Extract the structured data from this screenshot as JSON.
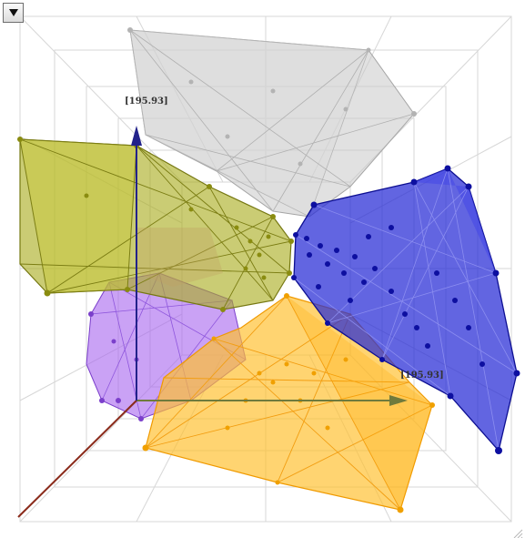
{
  "window": {
    "menu_button_icon": "chevron-down-icon",
    "resize_grip_icon": "resize-grip-icon"
  },
  "axes": {
    "y_label": "[195.93]",
    "x_label": "[195.93]",
    "colors": {
      "x": "#6f7a3c",
      "y": "#22228a",
      "z": "#8a2a1a"
    }
  },
  "clusters": [
    {
      "name": "gray",
      "color": "#c8c8c8"
    },
    {
      "name": "blue",
      "color": "#1f22c8"
    },
    {
      "name": "olive",
      "color": "#a6a81c"
    },
    {
      "name": "orange",
      "color": "#ffb21a"
    },
    {
      "name": "purple",
      "color": "#9a4fe0"
    }
  ]
}
